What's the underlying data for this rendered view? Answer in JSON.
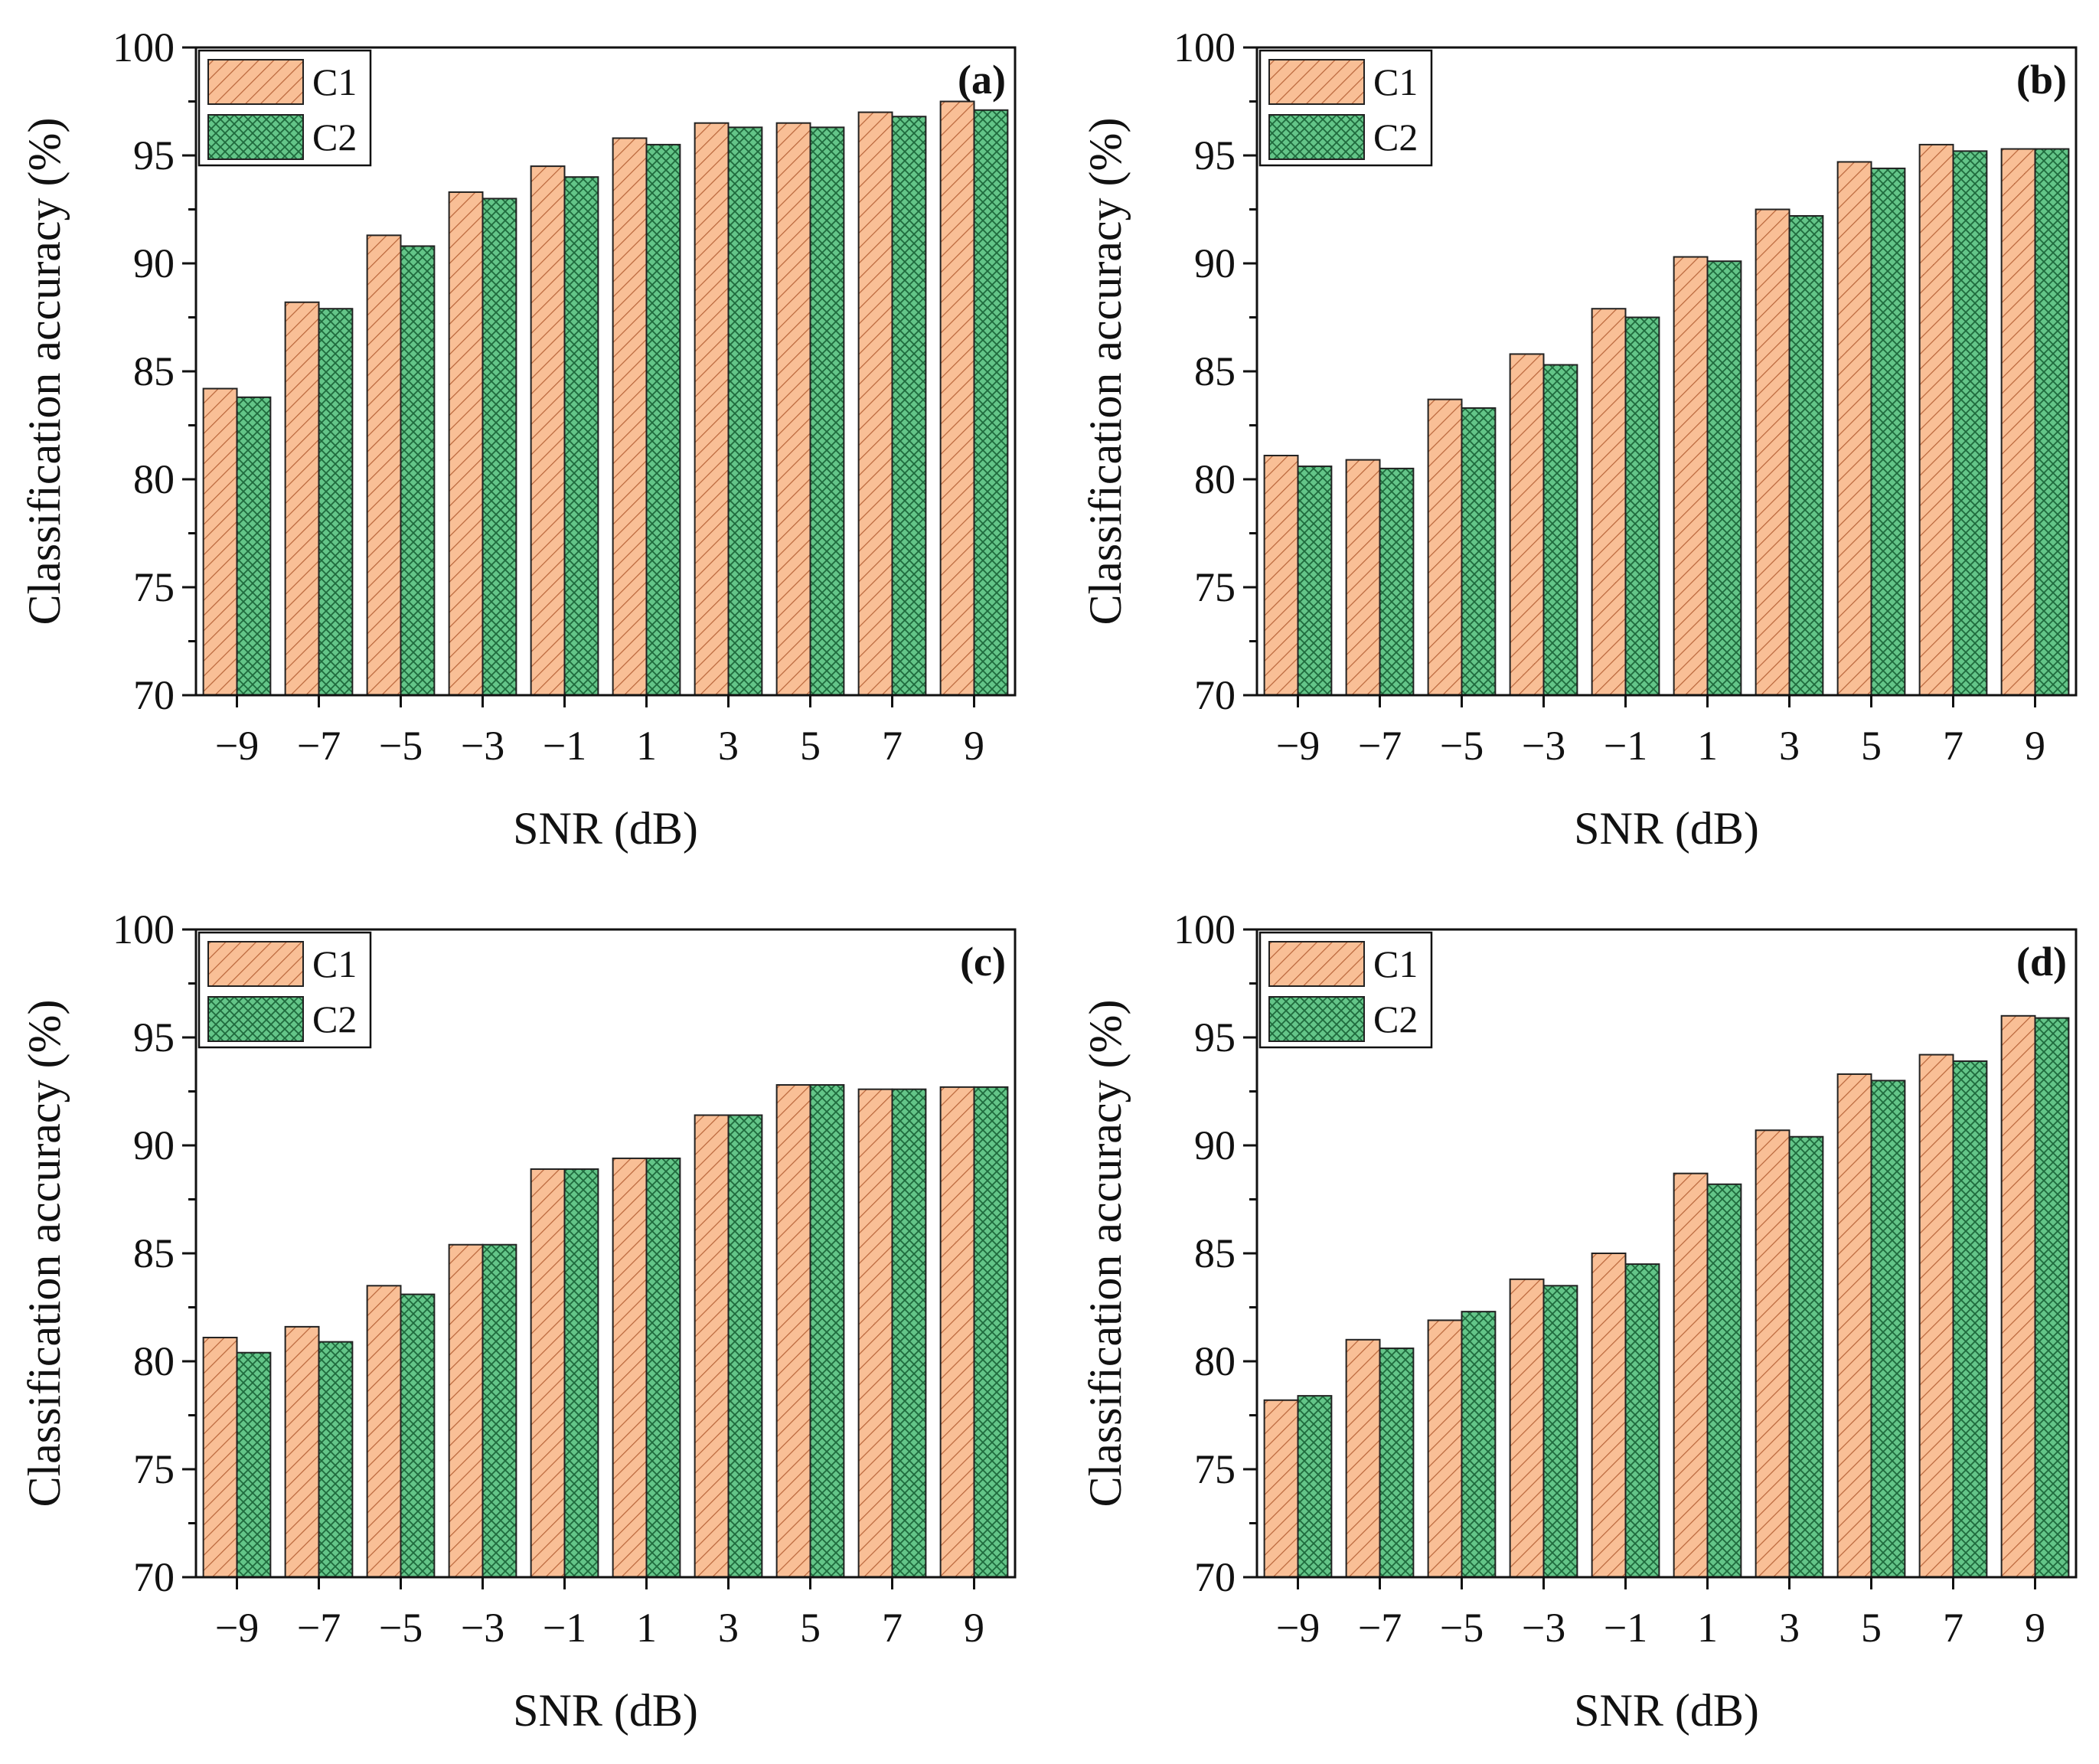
{
  "figure": {
    "colors": {
      "c1": "#f9bf96",
      "c2": "#63c588",
      "c1_hatch": "#b8653a",
      "c2_hatch": "#1f6a3d",
      "axis": "#111111"
    }
  },
  "chart_data": [
    {
      "type": "bar",
      "panel_label": "(a)",
      "categories": [
        "−9",
        "−7",
        "−5",
        "−3",
        "−1",
        "1",
        "3",
        "5",
        "7",
        "9"
      ],
      "series": [
        {
          "name": "C1",
          "values": [
            84.2,
            88.2,
            91.3,
            93.3,
            94.5,
            95.8,
            96.5,
            96.5,
            97.0,
            97.5
          ]
        },
        {
          "name": "C2",
          "values": [
            83.8,
            87.9,
            90.8,
            93.0,
            94.0,
            95.5,
            96.3,
            96.3,
            96.8,
            97.1
          ]
        }
      ],
      "xlabel": "SNR (dB)",
      "ylabel": "Classification accuracy (%)",
      "ylim": [
        70,
        100
      ],
      "yticks": [
        "70",
        "75",
        "80",
        "85",
        "90",
        "95",
        "100"
      ],
      "legend_position": "top-left"
    },
    {
      "type": "bar",
      "panel_label": "(b)",
      "categories": [
        "−9",
        "−7",
        "−5",
        "−3",
        "−1",
        "1",
        "3",
        "5",
        "7",
        "9"
      ],
      "series": [
        {
          "name": "C1",
          "values": [
            81.1,
            80.9,
            83.7,
            85.8,
            87.9,
            90.3,
            92.5,
            94.7,
            95.5,
            95.3
          ]
        },
        {
          "name": "C2",
          "values": [
            80.6,
            80.5,
            83.3,
            85.3,
            87.5,
            90.1,
            92.2,
            94.4,
            95.2,
            95.3
          ]
        }
      ],
      "xlabel": "SNR (dB)",
      "ylabel": "Classification accuracy (%)",
      "ylim": [
        70,
        100
      ],
      "yticks": [
        "70",
        "75",
        "80",
        "85",
        "90",
        "95",
        "100"
      ],
      "legend_position": "top-left"
    },
    {
      "type": "bar",
      "panel_label": "(c)",
      "categories": [
        "−9",
        "−7",
        "−5",
        "−3",
        "−1",
        "1",
        "3",
        "5",
        "7",
        "9"
      ],
      "series": [
        {
          "name": "C1",
          "values": [
            81.1,
            81.6,
            83.5,
            85.4,
            88.9,
            89.4,
            91.4,
            92.8,
            92.6,
            92.7
          ]
        },
        {
          "name": "C2",
          "values": [
            80.4,
            80.9,
            83.1,
            85.4,
            88.9,
            89.4,
            91.4,
            92.8,
            92.6,
            92.7
          ]
        }
      ],
      "xlabel": "SNR (dB)",
      "ylabel": "Classification accuracy (%)",
      "ylim": [
        70,
        100
      ],
      "yticks": [
        "70",
        "75",
        "80",
        "85",
        "90",
        "95",
        "100"
      ],
      "legend_position": "top-left"
    },
    {
      "type": "bar",
      "panel_label": "(d)",
      "categories": [
        "−9",
        "−7",
        "−5",
        "−3",
        "−1",
        "1",
        "3",
        "5",
        "7",
        "9"
      ],
      "series": [
        {
          "name": "C1",
          "values": [
            78.2,
            81.0,
            81.9,
            83.8,
            85.0,
            88.7,
            90.7,
            93.3,
            94.2,
            96.0
          ]
        },
        {
          "name": "C2",
          "values": [
            78.4,
            80.6,
            82.3,
            83.5,
            84.5,
            88.2,
            90.4,
            93.0,
            93.9,
            95.9
          ]
        }
      ],
      "xlabel": "SNR (dB)",
      "ylabel": "Classification accuracy (%)",
      "ylim": [
        70,
        100
      ],
      "yticks": [
        "70",
        "75",
        "80",
        "85",
        "90",
        "95",
        "100"
      ],
      "legend_position": "top-left"
    }
  ]
}
